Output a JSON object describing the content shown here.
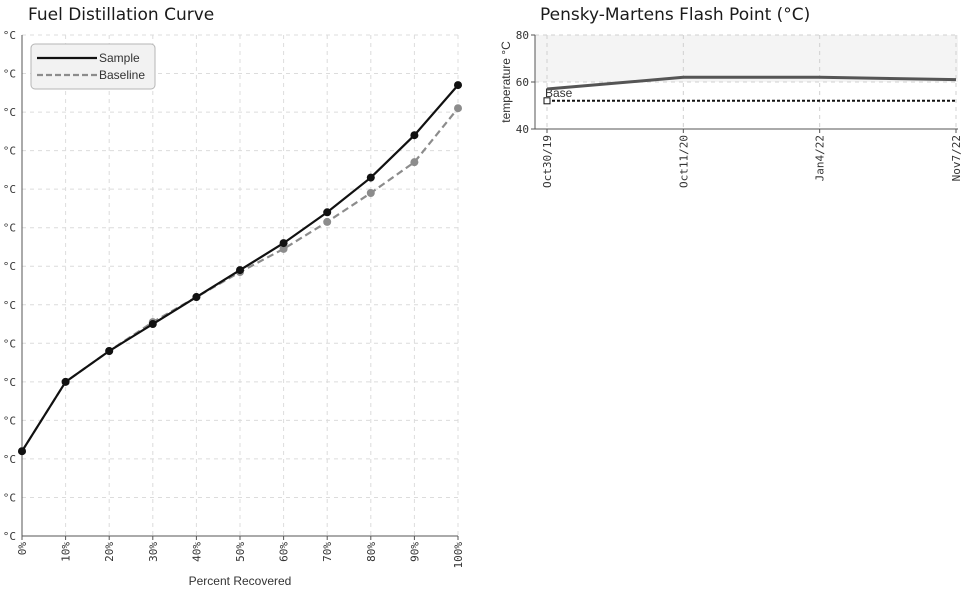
{
  "chart_data": [
    {
      "type": "line",
      "title": "Fuel Distillation Curve",
      "xlabel": "Percent Recovered",
      "ylabel": "",
      "categories": [
        "0%",
        "10%",
        "20%",
        "30%",
        "40%",
        "50%",
        "60%",
        "70%",
        "80%",
        "90%",
        "100%"
      ],
      "ylim": [
        0,
        13
      ],
      "y_tick_labels": [
        "°C",
        "°C",
        "°C",
        "°C",
        "°C",
        "°C",
        "°C",
        "°C",
        "°C",
        "°C",
        "°C",
        "°C",
        "°C",
        "°C"
      ],
      "grid": true,
      "legend": "top-left",
      "series": [
        {
          "name": "Sample",
          "color": "#111111",
          "dash": false,
          "values": [
            2.2,
            4.0,
            4.8,
            5.5,
            6.2,
            6.9,
            7.6,
            8.4,
            9.3,
            10.4,
            11.7
          ]
        },
        {
          "name": "Baseline",
          "color": "#8c8c8c",
          "dash": true,
          "values": [
            2.2,
            4.0,
            4.8,
            5.55,
            6.2,
            6.85,
            7.45,
            8.15,
            8.9,
            9.7,
            11.1
          ]
        }
      ]
    },
    {
      "type": "line",
      "title": "Pensky-Martens Flash Point (°C)",
      "xlabel": "",
      "ylabel": "temperature °C",
      "categories": [
        "Oct30/19",
        "Oct11/20",
        "Jan4/22",
        "Nov7/22"
      ],
      "ylim": [
        40,
        80
      ],
      "y_ticks": [
        40,
        60,
        80
      ],
      "grid": true,
      "series": [
        {
          "name": "",
          "color": "#555555",
          "dash": false,
          "values": [
            57,
            62,
            62,
            61
          ]
        },
        {
          "name": "Base",
          "color": "#111111",
          "dash": true,
          "values": [
            52,
            52,
            52,
            52
          ]
        }
      ]
    }
  ]
}
